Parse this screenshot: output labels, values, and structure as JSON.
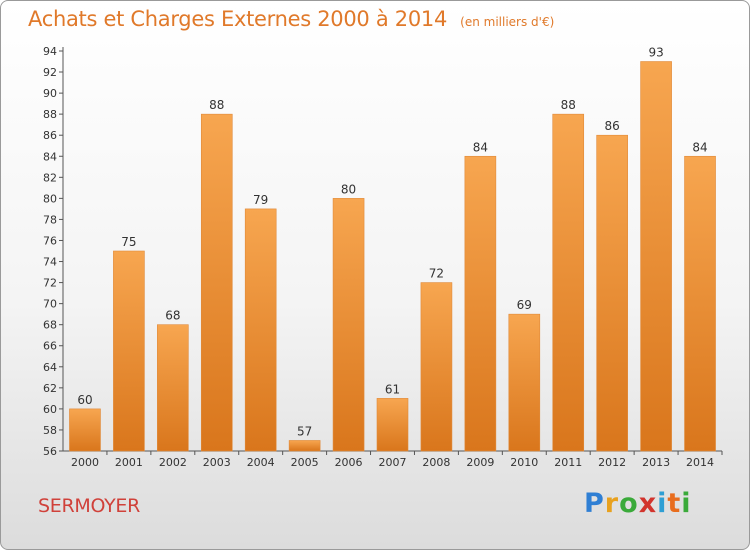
{
  "header": {
    "title": "Achats et Charges Externes 2000 à 2014",
    "unit": "(en milliers d'€)"
  },
  "footer": {
    "town": "SERMOYER",
    "logo": "Proxiti"
  },
  "colors": {
    "bar_light": "#f7a650",
    "bar_dark": "#d9761c",
    "title": "#e0792a",
    "town": "#d0413a"
  },
  "chart_data": {
    "type": "bar",
    "title": "Achats et Charges Externes 2000 à 2014",
    "subtitle": "(en milliers d'€)",
    "xlabel": "",
    "ylabel": "",
    "categories": [
      "2000",
      "2001",
      "2002",
      "2003",
      "2004",
      "2005",
      "2006",
      "2007",
      "2008",
      "2009",
      "2010",
      "2011",
      "2012",
      "2013",
      "2014"
    ],
    "values": [
      60,
      75,
      68,
      88,
      79,
      57,
      80,
      61,
      72,
      84,
      69,
      88,
      86,
      93,
      84
    ],
    "ylim": [
      56,
      94
    ],
    "ytick_step": 2,
    "grid": false,
    "legend": "none"
  }
}
